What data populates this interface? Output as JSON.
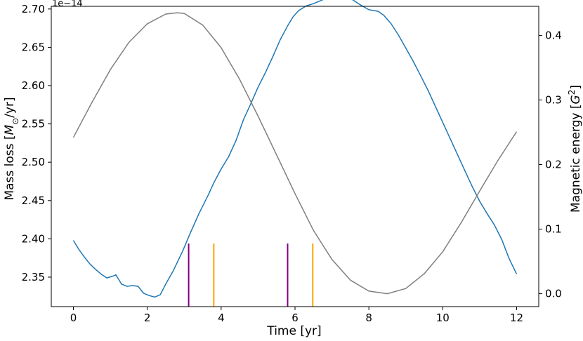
{
  "chart_data": {
    "type": "line",
    "xlabel": "Time [yr]",
    "ylabel": "Mass loss [M_⊙/yr]",
    "ylabel_parts": {
      "pre": "Mass loss [",
      "sym": "M",
      "sub": "⊙",
      "post": "/yr]"
    },
    "y2label": "Magnetic energy [G^2]",
    "y2label_parts": {
      "pre": "Magnetic energy [",
      "sym": "G",
      "sup": "2",
      "post": "]"
    },
    "y_offset_text": "1e−14",
    "xlim": [
      -0.6,
      12.6
    ],
    "ylim": [
      2.3115,
      2.7035
    ],
    "y2lim": [
      -0.02,
      0.445
    ],
    "x_ticks": [
      0,
      2,
      4,
      6,
      8,
      10,
      12
    ],
    "x_tick_labels": [
      "0",
      "2",
      "4",
      "6",
      "8",
      "10",
      "12"
    ],
    "y_ticks": [
      2.35,
      2.4,
      2.45,
      2.5,
      2.55,
      2.6,
      2.65,
      2.7
    ],
    "y_tick_labels": [
      "2.35",
      "2.40",
      "2.45",
      "2.50",
      "2.55",
      "2.60",
      "2.65",
      "2.70"
    ],
    "y2_ticks": [
      0.0,
      0.1,
      0.2,
      0.3,
      0.4
    ],
    "y2_tick_labels": [
      "0.0",
      "0.1",
      "0.2",
      "0.3",
      "0.4"
    ],
    "grid": false,
    "series": [
      {
        "axis": "left",
        "color": "#1f77b4",
        "x": [
          0.0,
          0.15,
          0.3,
          0.45,
          0.6,
          0.75,
          0.9,
          1.05,
          1.15,
          1.3,
          1.45,
          1.6,
          1.75,
          1.9,
          2.05,
          2.2,
          2.35,
          2.5,
          2.7,
          2.95,
          3.15,
          3.4,
          3.65,
          3.8,
          4.0,
          4.2,
          4.4,
          4.6,
          4.8,
          5.0,
          5.2,
          5.4,
          5.6,
          5.8,
          5.95,
          6.1,
          6.3,
          6.5,
          6.75,
          7.0,
          7.25,
          7.5,
          7.75,
          8.0,
          8.25,
          8.4,
          8.6,
          8.8,
          9.0,
          9.2,
          9.4,
          9.6,
          9.8,
          10.0,
          10.2,
          10.4,
          10.6,
          10.8,
          11.0,
          11.2,
          11.4,
          11.6,
          11.8,
          12.0
        ],
        "y": [
          2.398,
          2.386,
          2.376,
          2.367,
          2.36,
          2.354,
          2.349,
          2.351,
          2.353,
          2.341,
          2.338,
          2.339,
          2.338,
          2.329,
          2.326,
          2.324,
          2.327,
          2.341,
          2.358,
          2.383,
          2.406,
          2.433,
          2.457,
          2.473,
          2.491,
          2.507,
          2.528,
          2.555,
          2.576,
          2.598,
          2.617,
          2.638,
          2.66,
          2.678,
          2.69,
          2.698,
          2.704,
          2.707,
          2.712,
          2.716,
          2.717,
          2.714,
          2.706,
          2.699,
          2.697,
          2.692,
          2.681,
          2.666,
          2.649,
          2.632,
          2.613,
          2.594,
          2.573,
          2.552,
          2.531,
          2.51,
          2.489,
          2.468,
          2.449,
          2.433,
          2.418,
          2.399,
          2.374,
          2.354
        ]
      },
      {
        "axis": "right",
        "color": "#7f7f7f",
        "x": [
          0.0,
          0.5,
          1.0,
          1.5,
          2.0,
          2.5,
          2.8,
          3.0,
          3.5,
          4.0,
          4.5,
          5.0,
          5.5,
          6.0,
          6.5,
          7.0,
          7.5,
          8.0,
          8.5,
          9.0,
          9.5,
          10.0,
          10.5,
          11.0,
          11.5,
          12.0
        ],
        "y": [
          0.242,
          0.296,
          0.347,
          0.389,
          0.418,
          0.433,
          0.435,
          0.434,
          0.416,
          0.381,
          0.332,
          0.275,
          0.215,
          0.155,
          0.098,
          0.053,
          0.021,
          0.004,
          0.0,
          0.008,
          0.031,
          0.065,
          0.11,
          0.159,
          0.207,
          0.251
        ]
      }
    ],
    "vlines": [
      {
        "x": 3.12,
        "color": "#800080",
        "ymax_frac": 0.21
      },
      {
        "x": 3.8,
        "color": "#ffa500",
        "ymax_frac": 0.21
      },
      {
        "x": 5.8,
        "color": "#800080",
        "ymax_frac": 0.21
      },
      {
        "x": 6.48,
        "color": "#ffa500",
        "ymax_frac": 0.21
      }
    ]
  }
}
